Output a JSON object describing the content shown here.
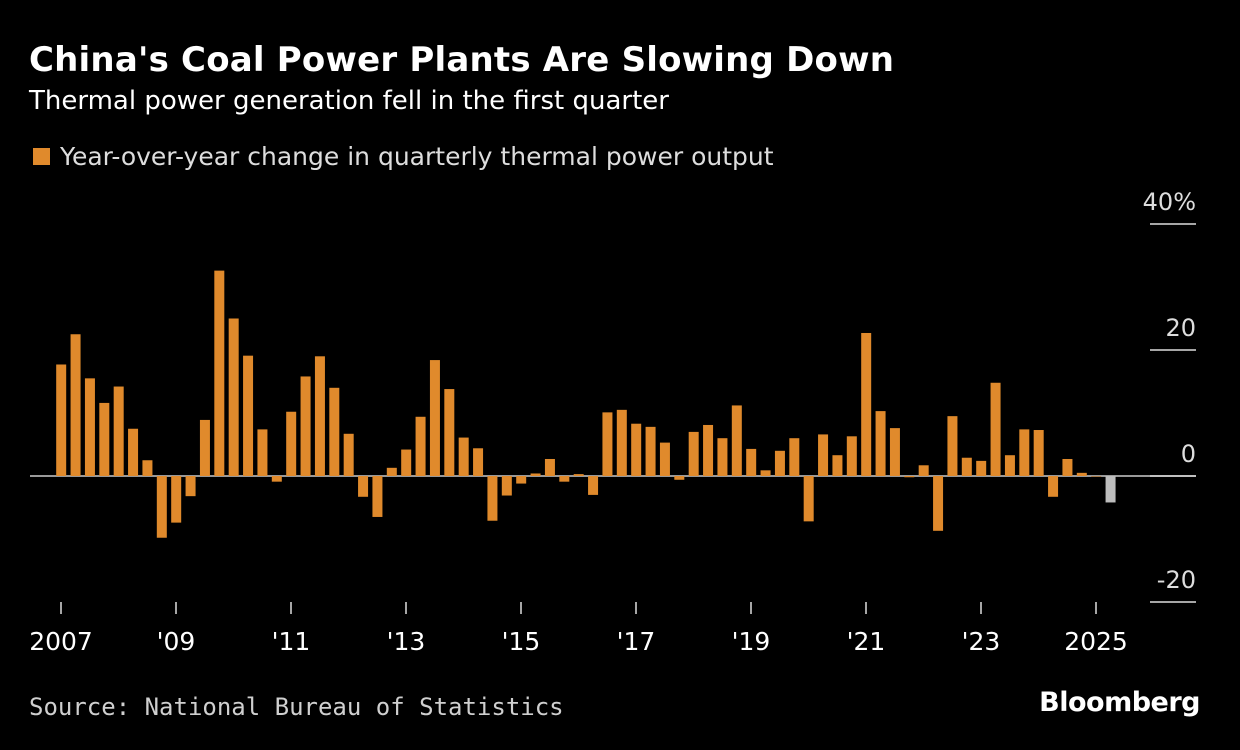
{
  "header": {
    "title": "China's Coal Power Plants Are Slowing Down",
    "subtitle": "Thermal power generation fell in the first quarter"
  },
  "legend": {
    "label": "Year-over-year change in quarterly thermal power output",
    "color": "#e08a2c"
  },
  "footer": {
    "source": "Source: National Bureau of Statistics",
    "brand": "Bloomberg"
  },
  "colors": {
    "background": "#000000",
    "bar": "#e08a2c",
    "highlight_bar": "#bdbdbd",
    "axis": "#cccccc"
  },
  "chart_data": {
    "type": "bar",
    "title": "China's Coal Power Plants Are Slowing Down",
    "subtitle": "Thermal power generation fell in the first quarter",
    "ylim": [
      -20,
      40
    ],
    "y_ticks": [
      40,
      20,
      0,
      -20
    ],
    "y_tick_labels": [
      "40%",
      "20",
      "0",
      "-20"
    ],
    "x_ticks": [
      {
        "year": 2007,
        "label": "2007"
      },
      {
        "year": 2009,
        "label": "'09"
      },
      {
        "year": 2011,
        "label": "'11"
      },
      {
        "year": 2013,
        "label": "'13"
      },
      {
        "year": 2015,
        "label": "'15"
      },
      {
        "year": 2017,
        "label": "'17"
      },
      {
        "year": 2019,
        "label": "'19"
      },
      {
        "year": 2021,
        "label": "'21"
      },
      {
        "year": 2023,
        "label": "'23"
      },
      {
        "year": 2025,
        "label": "2025"
      }
    ],
    "grid": false,
    "legend_position": "top-left",
    "series": [
      {
        "name": "Year-over-year change in quarterly thermal power output",
        "values": [
          17.7,
          22.5,
          15.5,
          11.6,
          14.2,
          7.5,
          2.5,
          -9.8,
          -7.4,
          -3.2,
          8.9,
          32.6,
          25.0,
          19.1,
          7.4,
          -0.9,
          10.2,
          15.8,
          19.0,
          14.0,
          6.7,
          -3.3,
          -6.5,
          1.3,
          4.2,
          9.4,
          18.4,
          13.8,
          6.1,
          4.4,
          -7.1,
          -3.1,
          -1.2,
          0.4,
          2.7,
          -0.9,
          0.3,
          -3.0,
          10.1,
          10.5,
          8.3,
          7.8,
          5.3,
          -0.6,
          7.0,
          8.1,
          6.0,
          11.2,
          4.3,
          0.9,
          4.0,
          6.0,
          -7.2,
          6.6,
          3.3,
          6.3,
          22.7,
          10.3,
          7.6,
          -0.2,
          1.7,
          -8.7,
          9.5,
          2.9,
          2.4,
          14.8,
          3.3,
          7.4,
          7.3,
          -3.3,
          2.7,
          0.5,
          0.0,
          -4.2
        ],
        "highlight_last": true
      }
    ],
    "first_quarter": "2007-Q1",
    "last_quarter": "2025-Q2"
  }
}
